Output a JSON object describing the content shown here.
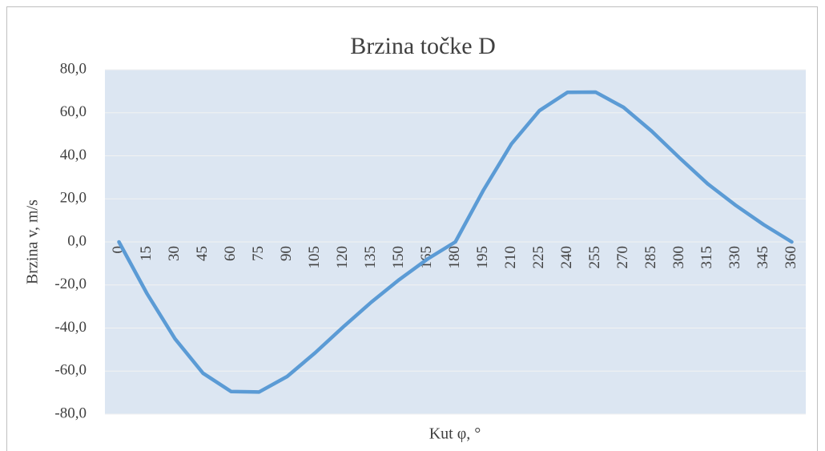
{
  "chart_data": {
    "type": "line",
    "title": "Brzina točke D",
    "x_label": "Kut φ, °",
    "y_label": "Brzina v, m/s",
    "categories": [
      "0",
      "15",
      "30",
      "45",
      "60",
      "75",
      "90",
      "105",
      "120",
      "135",
      "150",
      "165",
      "180",
      "195",
      "210",
      "225",
      "240",
      "255",
      "270",
      "285",
      "300",
      "315",
      "330",
      "345",
      "360"
    ],
    "series": [
      {
        "name": "Brzina v",
        "color": "#5b9bd5",
        "values": [
          0,
          -24,
          -45,
          -61,
          -69.5,
          -69.7,
          -62.5,
          -51.5,
          -39.5,
          -28,
          -17.5,
          -8,
          0,
          24,
          45.5,
          61,
          69.5,
          69.6,
          62.5,
          51.5,
          39,
          27,
          17,
          8,
          0
        ]
      }
    ],
    "ylim": [
      -80,
      80
    ],
    "yticks": [
      {
        "value": -80,
        "label": "-80,0"
      },
      {
        "value": -60,
        "label": "-60,0"
      },
      {
        "value": -40,
        "label": "-40,0"
      },
      {
        "value": -20,
        "label": "-20,0"
      },
      {
        "value": 0,
        "label": "0,0"
      },
      {
        "value": 20,
        "label": "20,0"
      },
      {
        "value": 40,
        "label": "40,0"
      },
      {
        "value": 60,
        "label": "60,0"
      },
      {
        "value": 80,
        "label": "80,0"
      }
    ],
    "grid": true
  }
}
